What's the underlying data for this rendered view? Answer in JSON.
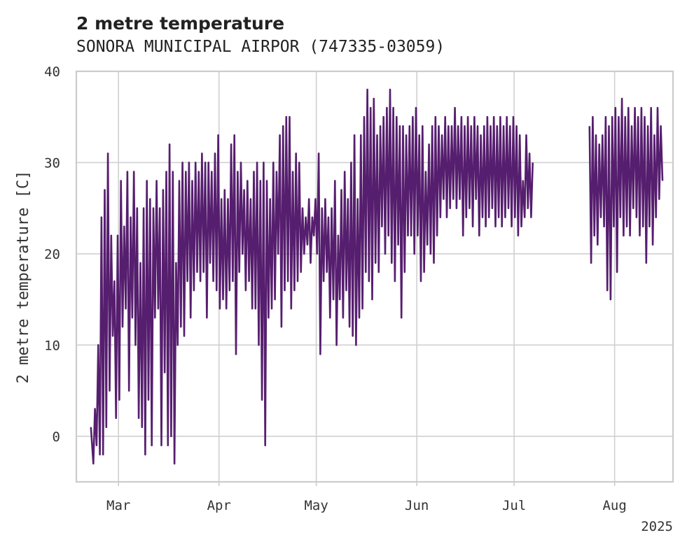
{
  "chart_data": {
    "type": "line",
    "title": "2 metre temperature",
    "subtitle": "SONORA MUNICIPAL AIRPOR (747335-03059)",
    "ylabel": "2 metre temperature [C]",
    "xlabel": "",
    "year_label": "2025",
    "ylim": [
      -5,
      40
    ],
    "xlim": [
      "2025-02-16",
      "2025-08-18"
    ],
    "x_ticks": [
      {
        "date": "2025-03-01",
        "label": "Mar"
      },
      {
        "date": "2025-04-01",
        "label": "Apr"
      },
      {
        "date": "2025-05-01",
        "label": "May"
      },
      {
        "date": "2025-06-01",
        "label": "Jun"
      },
      {
        "date": "2025-07-01",
        "label": "Jul"
      },
      {
        "date": "2025-08-01",
        "label": "Aug"
      }
    ],
    "y_ticks": [
      0,
      10,
      20,
      30,
      40
    ],
    "grid": true,
    "line_color": "#561e6e",
    "series": [
      {
        "x": [
          "2025-02-20",
          "2025-02-21",
          "2025-02-21",
          "2025-02-22",
          "2025-02-22",
          "2025-02-23",
          "2025-02-23",
          "2025-02-24",
          "2025-02-24",
          "2025-02-25",
          "2025-02-25",
          "2025-02-26",
          "2025-02-26",
          "2025-02-27",
          "2025-02-27",
          "2025-02-28",
          "2025-02-28",
          "2025-03-01",
          "2025-03-01",
          "2025-03-02",
          "2025-03-02",
          "2025-03-03",
          "2025-03-03",
          "2025-03-04",
          "2025-03-04",
          "2025-03-05",
          "2025-03-05",
          "2025-03-06",
          "2025-03-06",
          "2025-03-07",
          "2025-03-07",
          "2025-03-08",
          "2025-03-08",
          "2025-03-09",
          "2025-03-09",
          "2025-03-10",
          "2025-03-10",
          "2025-03-11",
          "2025-03-11",
          "2025-03-12",
          "2025-03-12",
          "2025-03-13",
          "2025-03-13",
          "2025-03-14",
          "2025-03-14",
          "2025-03-15",
          "2025-03-15",
          "2025-03-16",
          "2025-03-16",
          "2025-03-17",
          "2025-03-17",
          "2025-03-18",
          "2025-03-18",
          "2025-03-19",
          "2025-03-19",
          "2025-03-20",
          "2025-03-20",
          "2025-03-21",
          "2025-03-21",
          "2025-03-22",
          "2025-03-22",
          "2025-03-23",
          "2025-03-23",
          "2025-03-24",
          "2025-03-24",
          "2025-03-25",
          "2025-03-25",
          "2025-03-26",
          "2025-03-26",
          "2025-03-27",
          "2025-03-27",
          "2025-03-28",
          "2025-03-28",
          "2025-03-29",
          "2025-03-29",
          "2025-03-30",
          "2025-03-30",
          "2025-03-31",
          "2025-03-31",
          "2025-04-01",
          "2025-04-01",
          "2025-04-02",
          "2025-04-02",
          "2025-04-03",
          "2025-04-03",
          "2025-04-04",
          "2025-04-04",
          "2025-04-05",
          "2025-04-05",
          "2025-04-06",
          "2025-04-06",
          "2025-04-07",
          "2025-04-07",
          "2025-04-08",
          "2025-04-08",
          "2025-04-09",
          "2025-04-09",
          "2025-04-10",
          "2025-04-10",
          "2025-04-11",
          "2025-04-11",
          "2025-04-12",
          "2025-04-12",
          "2025-04-13",
          "2025-04-13",
          "2025-04-14",
          "2025-04-14",
          "2025-04-15",
          "2025-04-15",
          "2025-04-16",
          "2025-04-16",
          "2025-04-17",
          "2025-04-17",
          "2025-04-18",
          "2025-04-18",
          "2025-04-19",
          "2025-04-19",
          "2025-04-20",
          "2025-04-20",
          "2025-04-21",
          "2025-04-21",
          "2025-04-22",
          "2025-04-22",
          "2025-04-23",
          "2025-04-23",
          "2025-04-24",
          "2025-04-24",
          "2025-04-25",
          "2025-04-25",
          "2025-04-26",
          "2025-04-26",
          "2025-04-27",
          "2025-04-27",
          "2025-04-28",
          "2025-04-28",
          "2025-04-29",
          "2025-04-29",
          "2025-04-30",
          "2025-04-30",
          "2025-05-01",
          "2025-05-01",
          "2025-05-02",
          "2025-05-02",
          "2025-05-03",
          "2025-05-03",
          "2025-05-04",
          "2025-05-04",
          "2025-05-05",
          "2025-05-05",
          "2025-05-06",
          "2025-05-06",
          "2025-05-07",
          "2025-05-07",
          "2025-05-08",
          "2025-05-08",
          "2025-05-09",
          "2025-05-09",
          "2025-05-10",
          "2025-05-10",
          "2025-05-11",
          "2025-05-11",
          "2025-05-12",
          "2025-05-12",
          "2025-05-13",
          "2025-05-13",
          "2025-05-14",
          "2025-05-14",
          "2025-05-15",
          "2025-05-15",
          "2025-05-16",
          "2025-05-16",
          "2025-05-17",
          "2025-05-17",
          "2025-05-18",
          "2025-05-18",
          "2025-05-19",
          "2025-05-19",
          "2025-05-20",
          "2025-05-20",
          "2025-05-21",
          "2025-05-21",
          "2025-05-22",
          "2025-05-22",
          "2025-05-23",
          "2025-05-23",
          "2025-05-24",
          "2025-05-24",
          "2025-05-25",
          "2025-05-25",
          "2025-05-26",
          "2025-05-26",
          "2025-05-27",
          "2025-05-27",
          "2025-05-28",
          "2025-05-28",
          "2025-05-29",
          "2025-05-29",
          "2025-05-30",
          "2025-05-30",
          "2025-05-31",
          "2025-05-31",
          "2025-06-01",
          "2025-06-01",
          "2025-06-02",
          "2025-06-02",
          "2025-06-03",
          "2025-06-03",
          "2025-06-04",
          "2025-06-04",
          "2025-06-05",
          "2025-06-05",
          "2025-06-06",
          "2025-06-06",
          "2025-06-07",
          "2025-06-07",
          "2025-06-08",
          "2025-06-08",
          "2025-06-09",
          "2025-06-09",
          "2025-06-10",
          "2025-06-10",
          "2025-06-11",
          "2025-06-11",
          "2025-06-12",
          "2025-06-12",
          "2025-06-13",
          "2025-06-13",
          "2025-06-14",
          "2025-06-14",
          "2025-06-15",
          "2025-06-15",
          "2025-06-16",
          "2025-06-16",
          "2025-06-17",
          "2025-06-17",
          "2025-06-18",
          "2025-06-18",
          "2025-06-19",
          "2025-06-19",
          "2025-06-20",
          "2025-06-20",
          "2025-06-21",
          "2025-06-21",
          "2025-06-22",
          "2025-06-22",
          "2025-06-23",
          "2025-06-23",
          "2025-06-24",
          "2025-06-24",
          "2025-06-25",
          "2025-06-25",
          "2025-06-26",
          "2025-06-26",
          "2025-06-27",
          "2025-06-27",
          "2025-06-28",
          "2025-06-28",
          "2025-06-29",
          "2025-06-29",
          "2025-06-30",
          "2025-06-30",
          "2025-07-01",
          "2025-07-01",
          "2025-07-02",
          "2025-07-02",
          "2025-07-03",
          "2025-07-03",
          "2025-07-04",
          "2025-07-04",
          "2025-07-05",
          "2025-07-05",
          "2025-07-06",
          "2025-07-06"
        ],
        "y": [
          1,
          -3,
          3,
          -1,
          10,
          -2,
          24,
          -2,
          27,
          1,
          31,
          5,
          22,
          11,
          17,
          2,
          22,
          4,
          28,
          12,
          23,
          14,
          29,
          5,
          24,
          13,
          29,
          10,
          25,
          2,
          19,
          1,
          25,
          -2,
          28,
          4,
          26,
          -1,
          25,
          13,
          28,
          14,
          25,
          -1,
          27,
          7,
          29,
          -1,
          32,
          0,
          29,
          -3,
          19,
          10,
          28,
          12,
          30,
          11,
          29,
          17,
          30,
          13,
          28,
          16,
          30,
          18,
          29,
          17,
          31,
          18,
          30,
          13,
          30,
          19,
          29,
          17,
          31,
          16,
          33,
          14,
          26,
          15,
          27,
          14,
          26,
          16,
          32,
          17,
          33,
          9,
          29,
          18,
          30,
          20,
          27,
          16,
          28,
          17,
          26,
          14,
          29,
          14,
          30,
          10,
          28,
          4,
          30,
          -1,
          28,
          13,
          26,
          14,
          30,
          15,
          29,
          20,
          33,
          12,
          34,
          16,
          35,
          17,
          35,
          14,
          29,
          16,
          31,
          17,
          30,
          18,
          25,
          20,
          24,
          21,
          26,
          19,
          24,
          22,
          26,
          20,
          31,
          9,
          25,
          17,
          26,
          18,
          24,
          13,
          25,
          15,
          28,
          10,
          22,
          15,
          27,
          13,
          29,
          16,
          26,
          12,
          30,
          11,
          33,
          10,
          26,
          13,
          33,
          14,
          35,
          18,
          38,
          17,
          36,
          15,
          37,
          19,
          33,
          18,
          34,
          23,
          35,
          20,
          36,
          22,
          38,
          19,
          36,
          17,
          35,
          21,
          34,
          13,
          34,
          18,
          33,
          22,
          34,
          22,
          35,
          20,
          36,
          22,
          33,
          17,
          34,
          18,
          29,
          21,
          32,
          20,
          34,
          19,
          35,
          22,
          34,
          24,
          33,
          26,
          35,
          24,
          34,
          25,
          34,
          26,
          36,
          25,
          34,
          26,
          35,
          22,
          34,
          24,
          35,
          25,
          34,
          23,
          35,
          26,
          34,
          22,
          33,
          24,
          34,
          23,
          35,
          24,
          34,
          25,
          35,
          23,
          34,
          24,
          35,
          23,
          34,
          24,
          35,
          25,
          34,
          23,
          35,
          24,
          34,
          22,
          33,
          23,
          28,
          24,
          33,
          25,
          31,
          24,
          30
        ]
      },
      {
        "x": [
          "2025-07-24",
          "2025-07-24",
          "2025-07-25",
          "2025-07-25",
          "2025-07-26",
          "2025-07-26",
          "2025-07-27",
          "2025-07-27",
          "2025-07-28",
          "2025-07-28",
          "2025-07-29",
          "2025-07-29",
          "2025-07-30",
          "2025-07-30",
          "2025-07-31",
          "2025-07-31",
          "2025-08-01",
          "2025-08-01",
          "2025-08-02",
          "2025-08-02",
          "2025-08-03",
          "2025-08-03",
          "2025-08-04",
          "2025-08-04",
          "2025-08-05",
          "2025-08-05",
          "2025-08-06",
          "2025-08-06",
          "2025-08-07",
          "2025-08-07",
          "2025-08-08",
          "2025-08-08",
          "2025-08-09",
          "2025-08-09",
          "2025-08-10",
          "2025-08-10",
          "2025-08-11",
          "2025-08-11",
          "2025-08-12",
          "2025-08-12",
          "2025-08-13",
          "2025-08-13",
          "2025-08-14",
          "2025-08-14",
          "2025-08-15",
          "2025-08-15"
        ],
        "y": [
          34,
          19,
          35,
          22,
          33,
          21,
          32,
          24,
          33,
          23,
          35,
          16,
          34,
          15,
          35,
          23,
          36,
          18,
          35,
          24,
          37,
          22,
          35,
          23,
          36,
          22,
          34,
          25,
          36,
          24,
          35,
          22,
          36,
          23,
          35,
          19,
          34,
          23,
          36,
          21,
          33,
          24,
          36,
          26,
          34,
          28
        ]
      }
    ]
  }
}
